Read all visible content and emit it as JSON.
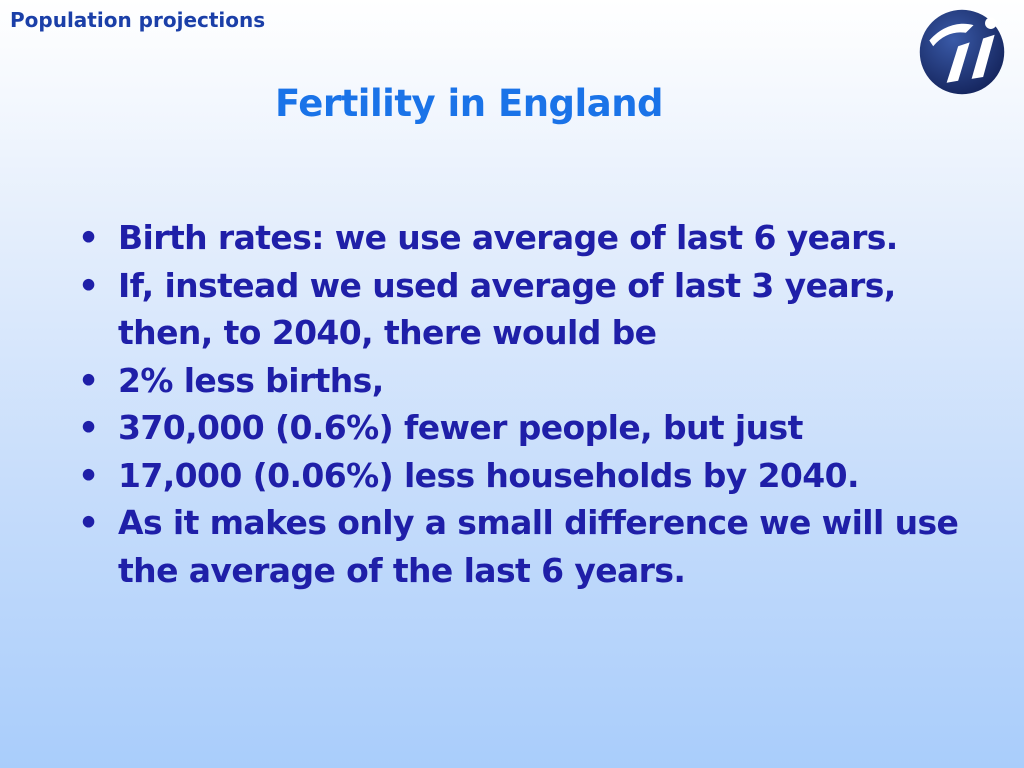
{
  "header": {
    "section_label": "Population projections"
  },
  "slide": {
    "title": "Fertility in England",
    "bullets": [
      "Birth rates: we use average of last 6 years.",
      "If, instead we used average of last 3 years, then, to 2040, there would be",
      "2% less births,",
      "370,000 (0.6%) fewer people, but just",
      "17,000 (0.06%) less households by 2040.",
      "As it makes only a small difference we will use the average of the last 6 years."
    ],
    "bullet_glyph": "•"
  },
  "colors": {
    "header_text": "#1b3fa8",
    "title_text": "#1a73e8",
    "body_text": "#1f1fa8",
    "logo_dark": "#1b2f6e",
    "logo_light": "#ffffff"
  },
  "icons": {
    "logo": "organisation-logo-icon"
  }
}
